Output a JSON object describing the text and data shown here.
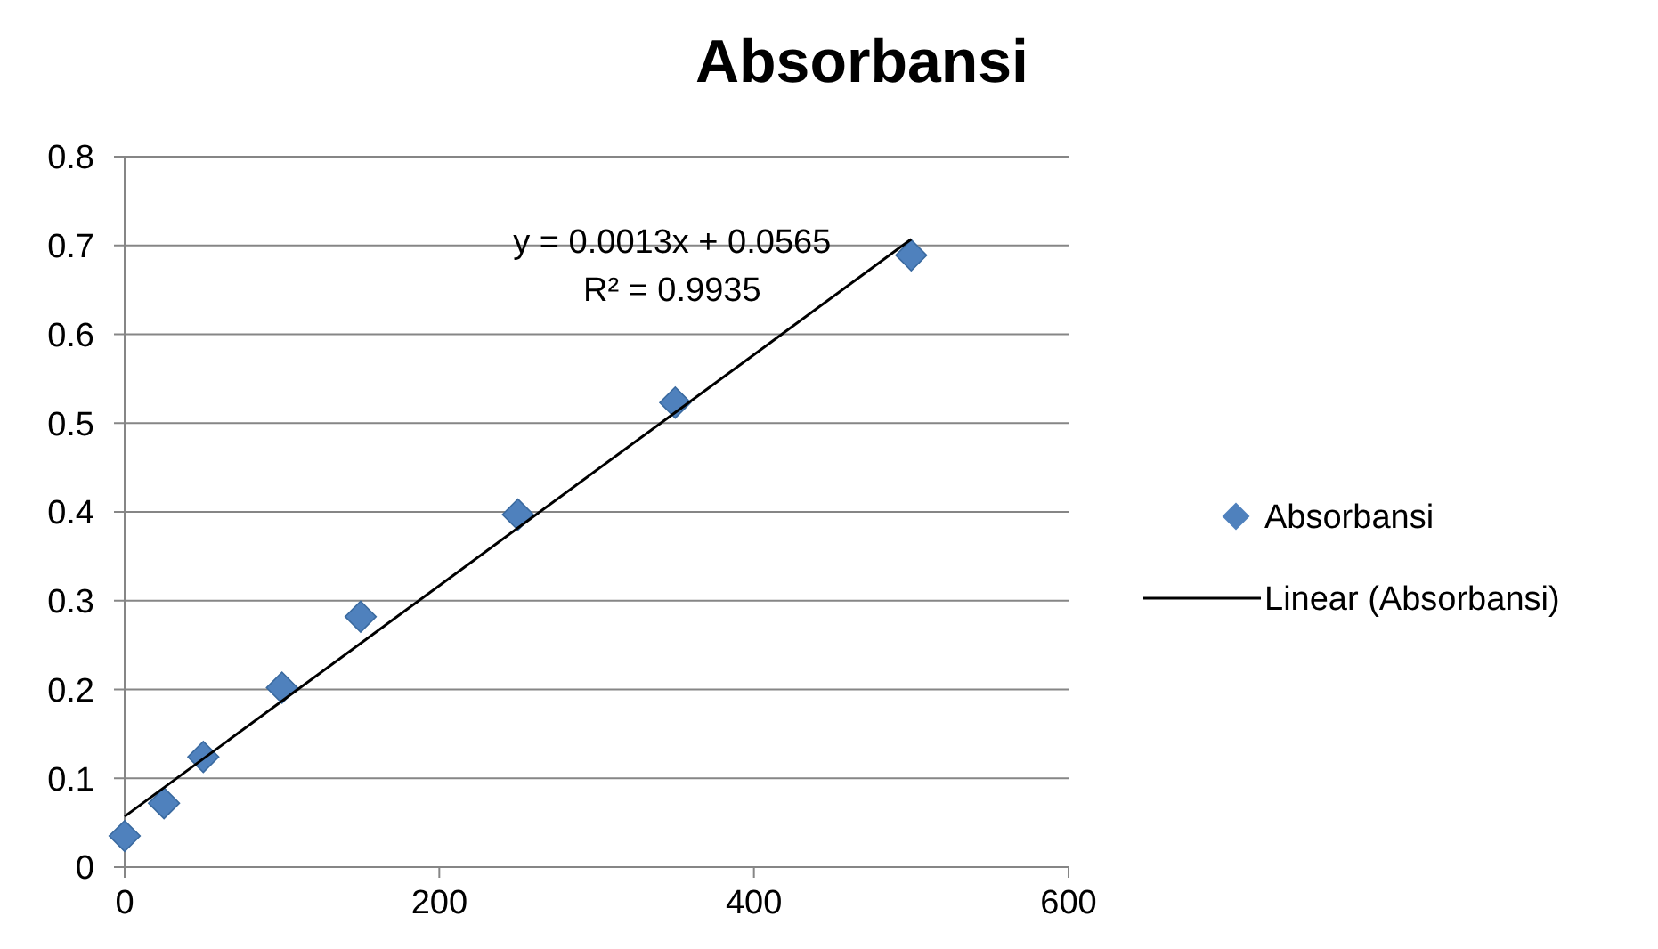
{
  "chart_data": {
    "type": "scatter",
    "title": "Absorbansi",
    "x": [
      0,
      25,
      50,
      100,
      150,
      250,
      350,
      500
    ],
    "series": [
      {
        "name": "Absorbansi",
        "color": "#4f81bd",
        "marker": "diamond",
        "values": [
          0.035,
          0.072,
          0.124,
          0.202,
          0.282,
          0.397,
          0.523,
          0.689
        ]
      },
      {
        "name": "Linear (Absorbansi)",
        "type": "line",
        "color": "#000000",
        "marker": "none",
        "line_style": "solid",
        "x": [
          0,
          500
        ],
        "values": [
          0.057,
          0.707
        ]
      }
    ],
    "xlim": [
      0,
      600
    ],
    "xticks": [
      0,
      200,
      400,
      600
    ],
    "ylim": [
      0,
      0.8
    ],
    "yticks": [
      0,
      0.1,
      0.2,
      0.3,
      0.4,
      0.5,
      0.6,
      0.7,
      0.8
    ],
    "grid": "y",
    "legend": "right",
    "annotations": [
      "y = 0.0013x + 0.0565",
      "R² = 0.9935"
    ]
  }
}
